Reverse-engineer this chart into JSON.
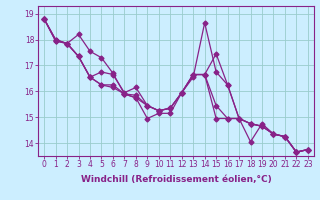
{
  "xlabel": "Windchill (Refroidissement éolien,°C)",
  "x": [
    0,
    1,
    2,
    3,
    4,
    5,
    6,
    7,
    8,
    9,
    10,
    11,
    12,
    13,
    14,
    15,
    16,
    17,
    18,
    19,
    20,
    21,
    22,
    23
  ],
  "lines": [
    [
      18.8,
      18.0,
      17.85,
      18.2,
      17.55,
      17.3,
      16.7,
      15.9,
      15.75,
      14.95,
      15.15,
      15.15,
      15.95,
      16.55,
      18.65,
      16.75,
      16.25,
      14.95,
      14.05,
      14.75,
      14.35,
      14.25,
      13.65,
      13.75
    ],
    [
      18.8,
      18.0,
      17.85,
      17.35,
      16.55,
      16.25,
      16.25,
      15.9,
      15.85,
      15.45,
      15.25,
      15.35,
      15.95,
      16.65,
      16.65,
      17.45,
      16.25,
      14.95,
      14.75,
      14.65,
      14.35,
      14.25,
      13.65,
      13.75
    ],
    [
      18.8,
      17.95,
      17.85,
      17.35,
      16.55,
      16.25,
      16.15,
      15.9,
      15.75,
      15.45,
      15.25,
      15.35,
      15.95,
      16.65,
      16.65,
      15.45,
      14.95,
      14.95,
      14.75,
      14.65,
      14.35,
      14.25,
      13.65,
      13.75
    ],
    [
      18.8,
      17.95,
      17.85,
      17.35,
      16.55,
      16.75,
      16.65,
      15.95,
      16.15,
      15.45,
      15.25,
      15.35,
      15.95,
      16.65,
      16.65,
      14.95,
      14.95,
      14.95,
      14.75,
      14.65,
      14.35,
      14.25,
      13.65,
      13.75
    ]
  ],
  "line_color": "#882288",
  "marker": "D",
  "marker_size": 2.5,
  "line_width": 0.9,
  "bg_color": "#cceeff",
  "grid_color": "#99cccc",
  "ylim": [
    13.5,
    19.3
  ],
  "yticks": [
    14,
    15,
    16,
    17,
    18,
    19
  ],
  "xticks": [
    0,
    1,
    2,
    3,
    4,
    5,
    6,
    7,
    8,
    9,
    10,
    11,
    12,
    13,
    14,
    15,
    16,
    17,
    18,
    19,
    20,
    21,
    22,
    23
  ],
  "axis_color": "#882288",
  "tick_color": "#882288",
  "label_color": "#882288",
  "label_fontsize": 6.5,
  "tick_fontsize": 5.5
}
